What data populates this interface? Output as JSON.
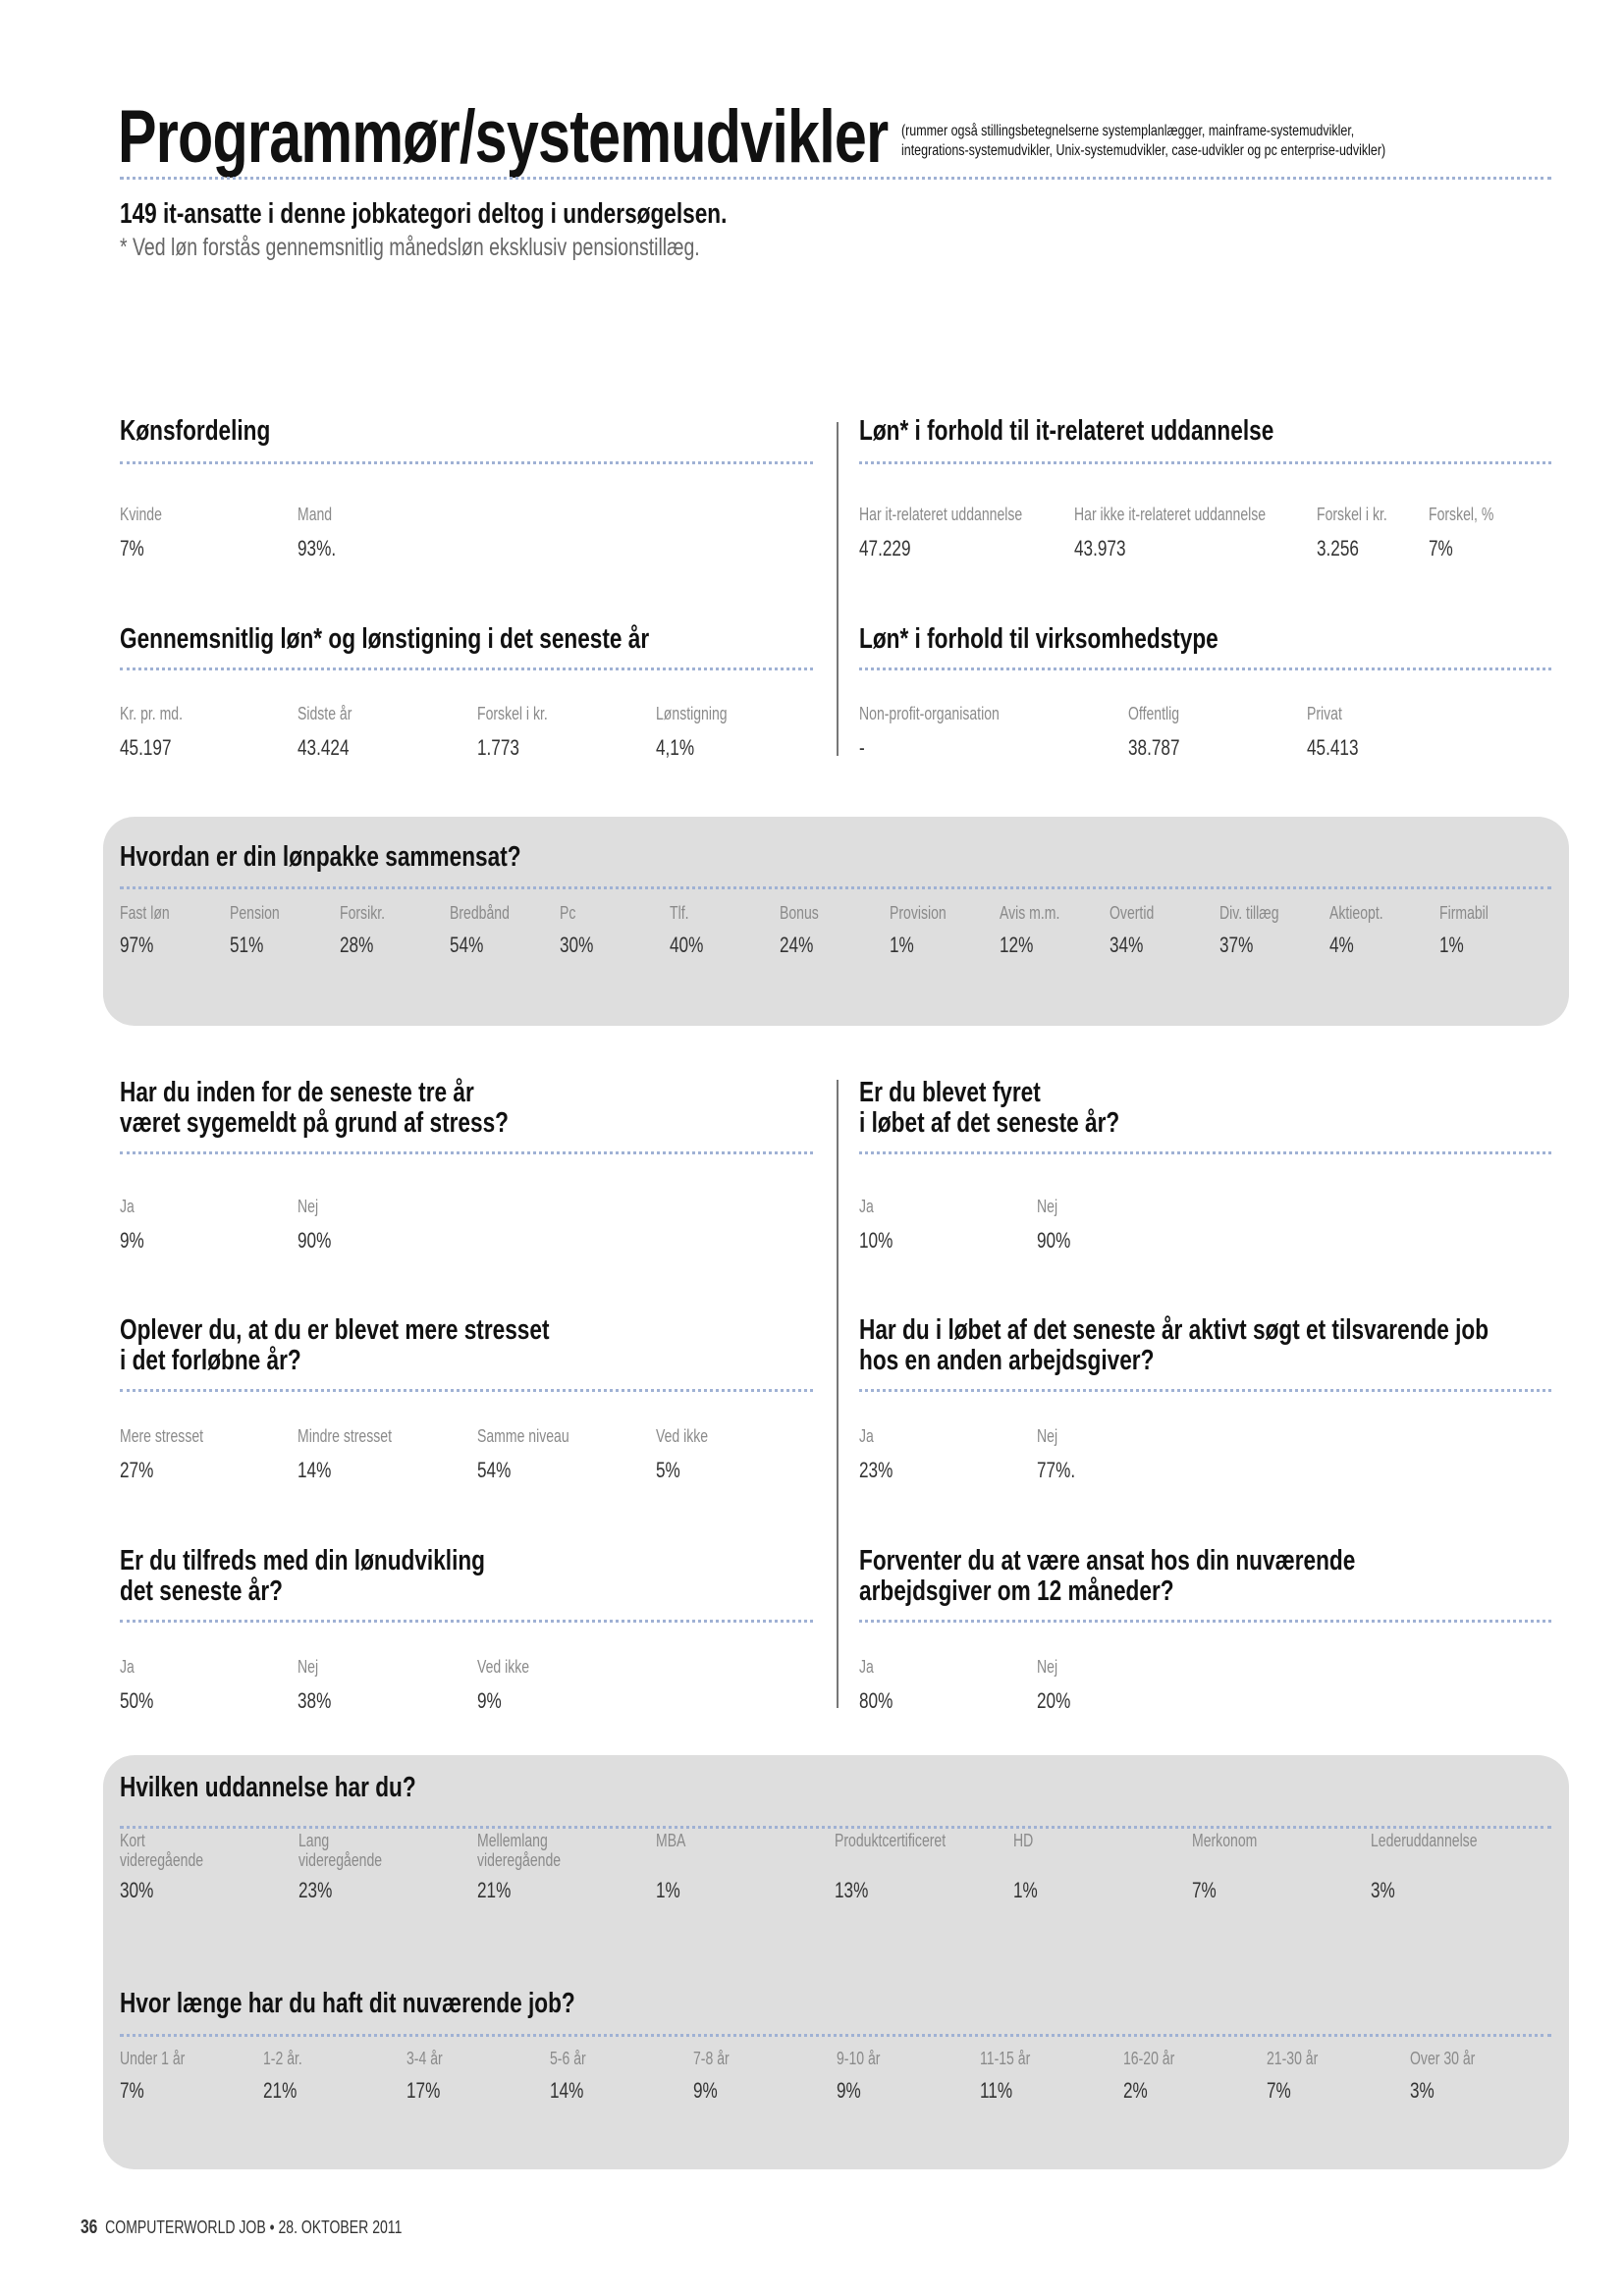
{
  "header": {
    "title": "Programmør/systemudvikler",
    "subtitle_lines": [
      "(rummer også stillingsbetegnelserne systemplanlægger, mainframe-systemudvikler,",
      "integrations-systemudvikler, Unix-systemudvikler, case-udvikler og pc enterprise-udvikler)"
    ],
    "intro": "149 it-ansatte i denne jobkategori deltog i undersøgelsen.",
    "note": "* Ved løn forstås gennemsnitlig månedsløn eksklusiv pensionstillæg."
  },
  "sections": {
    "gender": {
      "heading": [
        "Kønsfordeling"
      ],
      "items": [
        {
          "label": "Kvinde",
          "value": "7%"
        },
        {
          "label": "Mand",
          "value": "93%."
        }
      ]
    },
    "salary_education": {
      "heading": [
        "Løn* i forhold til it-relateret uddannelse"
      ],
      "items": [
        {
          "label": "Har it-relateret uddannelse",
          "value": "47.229"
        },
        {
          "label": "Har ikke it-relateret uddannelse",
          "value": "43.973"
        },
        {
          "label": "Forskel i kr.",
          "value": "3.256"
        },
        {
          "label": "Forskel, %",
          "value": "7%"
        }
      ]
    },
    "avg_salary": {
      "heading": [
        "Gennemsnitlig løn* og lønstigning i det seneste år"
      ],
      "items": [
        {
          "label": "Kr. pr. md.",
          "value": "45.197"
        },
        {
          "label": "Sidste år",
          "value": "43.424"
        },
        {
          "label": "Forskel i kr.",
          "value": "1.773"
        },
        {
          "label": "Lønstigning",
          "value": "4,1%"
        }
      ]
    },
    "salary_company": {
      "heading": [
        "Løn* i forhold til virksomhedstype"
      ],
      "items": [
        {
          "label": "Non-profit-organisation",
          "value": "-"
        },
        {
          "label": "Offentlig",
          "value": "38.787"
        },
        {
          "label": "Privat",
          "value": "45.413"
        }
      ]
    },
    "package": {
      "heading": [
        "Hvordan er din lønpakke sammensat?"
      ],
      "items": [
        {
          "label": "Fast løn",
          "value": "97%"
        },
        {
          "label": "Pension",
          "value": "51%"
        },
        {
          "label": "Forsikr.",
          "value": "28%"
        },
        {
          "label": "Bredbånd",
          "value": "54%"
        },
        {
          "label": "Pc",
          "value": "30%"
        },
        {
          "label": "Tlf.",
          "value": "40%"
        },
        {
          "label": "Bonus",
          "value": "24%"
        },
        {
          "label": "Provision",
          "value": "1%"
        },
        {
          "label": "Avis m.m.",
          "value": "12%"
        },
        {
          "label": "Overtid",
          "value": "34%"
        },
        {
          "label": "Div. tillæg",
          "value": "37%"
        },
        {
          "label": "Aktieopt.",
          "value": "4%"
        },
        {
          "label": "Firmabil",
          "value": "1%"
        }
      ]
    },
    "stress_sick": {
      "heading": [
        "Har du inden for de seneste tre år",
        "været sygemeldt på grund af stress?"
      ],
      "items": [
        {
          "label": "Ja",
          "value": "9%"
        },
        {
          "label": "Nej",
          "value": "90%"
        }
      ]
    },
    "fired": {
      "heading": [
        "Er du blevet fyret",
        "i løbet af det seneste år?"
      ],
      "items": [
        {
          "label": "Ja",
          "value": "10%"
        },
        {
          "label": "Nej",
          "value": "90%"
        }
      ]
    },
    "more_stressed": {
      "heading": [
        "Oplever du, at du er blevet mere stresset",
        "i det forløbne år?"
      ],
      "items": [
        {
          "label": "Mere stresset",
          "value": "27%"
        },
        {
          "label": "Mindre stresset",
          "value": "14%"
        },
        {
          "label": "Samme niveau",
          "value": "54%"
        },
        {
          "label": "Ved ikke",
          "value": "5%"
        }
      ]
    },
    "job_search": {
      "heading": [
        "Har du i løbet af det seneste år aktivt søgt et tilsvarende job",
        "hos en anden arbejdsgiver?"
      ],
      "items": [
        {
          "label": "Ja",
          "value": "23%"
        },
        {
          "label": "Nej",
          "value": "77%."
        }
      ]
    },
    "salary_satisfaction": {
      "heading": [
        "Er du tilfreds med din lønudvikling",
        "det seneste år?"
      ],
      "items": [
        {
          "label": "Ja",
          "value": "50%"
        },
        {
          "label": "Nej",
          "value": "38%"
        },
        {
          "label": "Ved ikke",
          "value": "9%"
        }
      ]
    },
    "expect_stay": {
      "heading": [
        "Forventer du at være ansat hos din nuværende",
        "arbejdsgiver om 12 måneder?"
      ],
      "items": [
        {
          "label": "Ja",
          "value": "80%"
        },
        {
          "label": "Nej",
          "value": "20%"
        }
      ]
    },
    "education": {
      "heading": [
        "Hvilken uddannelse har du?"
      ],
      "items": [
        {
          "label": "Kort\nvideregående",
          "value": "30%"
        },
        {
          "label": "Lang\nvideregående",
          "value": "23%"
        },
        {
          "label": "Mellemlang\nvideregående",
          "value": "21%"
        },
        {
          "label": "MBA",
          "value": "1%"
        },
        {
          "label": "Produktcertificeret",
          "value": "13%"
        },
        {
          "label": "HD",
          "value": "1%"
        },
        {
          "label": "Merkonom",
          "value": "7%"
        },
        {
          "label": "Lederuddannelse",
          "value": "3%"
        }
      ]
    },
    "tenure": {
      "heading": [
        "Hvor længe har du haft dit nuværende job?"
      ],
      "items": [
        {
          "label": "Under 1 år",
          "value": "7%"
        },
        {
          "label": "1-2 år.",
          "value": "21%"
        },
        {
          "label": "3-4 år",
          "value": "17%"
        },
        {
          "label": "5-6 år",
          "value": "14%"
        },
        {
          "label": "7-8 år",
          "value": "9%"
        },
        {
          "label": "9-10 år",
          "value": "9%"
        },
        {
          "label": "11-15 år",
          "value": "11%"
        },
        {
          "label": "16-20 år",
          "value": "2%"
        },
        {
          "label": "21-30 år",
          "value": "7%"
        },
        {
          "label": "Over 30 år",
          "value": "3%"
        }
      ]
    }
  },
  "footer": {
    "page_number": "36",
    "publication": "COMPUTERWORLD JOB",
    "separator": "•",
    "date": "28. OKTOBER 2011"
  }
}
